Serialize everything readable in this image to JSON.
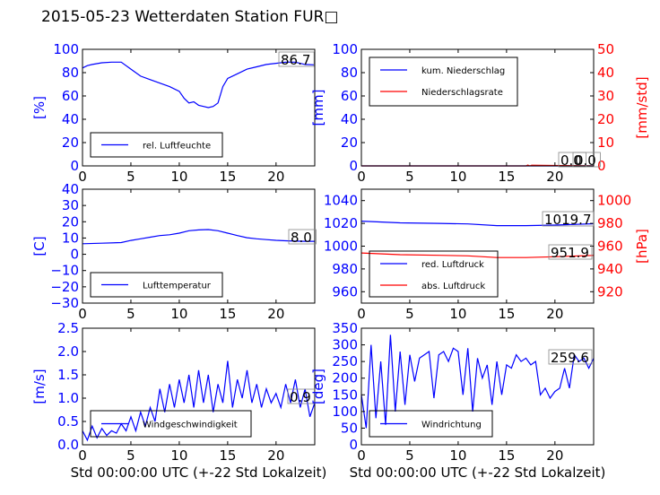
{
  "title": "2015-05-23 Wetterdaten Station FUR□",
  "chart_data": [
    {
      "type": "line",
      "ylabel": "[%]",
      "xlim": [
        0,
        24
      ],
      "ylim": [
        0,
        100
      ],
      "xticks": [
        0,
        5,
        10,
        15,
        20
      ],
      "yticks": [
        0,
        20,
        40,
        60,
        80,
        100
      ],
      "legend_placement": "lower-left",
      "series": [
        {
          "name": "rel. Luftfeuchte",
          "color": "#0000ff",
          "x": [
            0,
            0.5,
            1,
            2,
            3,
            4,
            5,
            6,
            7,
            8,
            9,
            10,
            10.5,
            11,
            11.5,
            12,
            12.5,
            13,
            13.5,
            14,
            14.5,
            15,
            16,
            17,
            18,
            19,
            20,
            21,
            22,
            23,
            24
          ],
          "values": [
            84,
            86,
            87,
            88.5,
            89,
            89,
            83,
            77,
            74,
            71,
            68,
            64,
            58,
            54,
            55,
            52,
            51,
            50,
            51,
            54,
            68,
            75,
            79,
            83,
            85,
            87,
            88,
            89,
            89,
            87,
            86.7
          ]
        }
      ],
      "annotations": [
        "86.7"
      ]
    },
    {
      "type": "line",
      "ylabel": "[mm]",
      "ylabel_right": "[mm/std]",
      "xlim": [
        0,
        24
      ],
      "ylim": [
        0,
        100
      ],
      "ylim_right": [
        0,
        50
      ],
      "xticks": [
        0,
        5,
        10,
        15,
        20
      ],
      "yticks": [
        0,
        20,
        40,
        60,
        80,
        100
      ],
      "yticks_right": [
        0,
        10,
        20,
        30,
        40,
        50
      ],
      "legend_placement": "upper-left",
      "series": [
        {
          "name": "kum. Niederschlag",
          "color": "#0000ff",
          "x": [
            0,
            24
          ],
          "values": [
            0,
            0
          ]
        },
        {
          "name": "Niederschlagsrate",
          "color": "#ff0000",
          "axis": "right",
          "x": [
            0,
            17,
            17.2,
            17.4,
            17.6,
            24
          ],
          "values": [
            0,
            0,
            0.4,
            0,
            0.3,
            0
          ]
        }
      ],
      "annotations": [
        "0.0",
        "0.0"
      ]
    },
    {
      "type": "line",
      "ylabel": "[C]",
      "xlim": [
        0,
        24
      ],
      "ylim": [
        -30,
        40
      ],
      "xticks": [
        0,
        5,
        10,
        15,
        20
      ],
      "yticks": [
        -30,
        -20,
        -10,
        0,
        10,
        20,
        30,
        40
      ],
      "legend_placement": "lower-left",
      "series": [
        {
          "name": "Lufttemperatur",
          "color": "#0000ff",
          "x": [
            0,
            2,
            4,
            5,
            6,
            7,
            8,
            9,
            10,
            11,
            12,
            13,
            14,
            15,
            16,
            17,
            18,
            19,
            20,
            21,
            22,
            23,
            24
          ],
          "values": [
            6.5,
            6.8,
            7.2,
            8.5,
            9.5,
            10.5,
            11.5,
            12,
            13,
            14.5,
            15,
            15.2,
            14.5,
            13,
            11.5,
            10.2,
            9.5,
            9,
            8.6,
            8.3,
            8.1,
            8.0,
            8.0
          ]
        }
      ],
      "annotations": [
        "8.0"
      ]
    },
    {
      "type": "line",
      "ylabel_right": "[hPa]",
      "xlim": [
        0,
        24
      ],
      "ylim": [
        950,
        1050
      ],
      "ylim_right": [
        910,
        1010
      ],
      "xticks": [
        0,
        5,
        10,
        15,
        20
      ],
      "yticks": [
        960,
        980,
        1000,
        1020,
        1040
      ],
      "yticks_right": [
        920,
        940,
        960,
        980,
        1000
      ],
      "legend_placement": "lower-left",
      "series": [
        {
          "name": "red. Luftdruck",
          "color": "#0000ff",
          "x": [
            0,
            4,
            8,
            11,
            14,
            17,
            20,
            24
          ],
          "values": [
            1022,
            1020.5,
            1020,
            1019.5,
            1018,
            1018,
            1018.5,
            1019.7
          ]
        },
        {
          "name": "abs. Luftdruck",
          "color": "#ff0000",
          "axis": "right",
          "x": [
            0,
            4,
            8,
            11,
            14,
            17,
            20,
            24
          ],
          "values": [
            954,
            952.5,
            952,
            951.5,
            950,
            950,
            950.7,
            951.9
          ]
        }
      ],
      "annotations": [
        "1019.7",
        "951.9"
      ]
    },
    {
      "type": "line",
      "ylabel": "[m/s]",
      "xlabel": "Std 00:00:00 UTC (+-22 Std Lokalzeit)",
      "xlim": [
        0,
        24
      ],
      "ylim": [
        0,
        2.5
      ],
      "xticks": [
        0,
        5,
        10,
        15,
        20
      ],
      "yticks": [
        0.0,
        0.5,
        1.0,
        1.5,
        2.0,
        2.5
      ],
      "legend_placement": "lower-left",
      "series": [
        {
          "name": "Windgeschwindigkeit",
          "color": "#0000ff",
          "x": [
            0,
            0.5,
            1,
            1.5,
            2,
            2.5,
            3,
            3.5,
            4,
            4.5,
            5,
            5.5,
            6,
            6.5,
            7,
            7.5,
            8,
            8.5,
            9,
            9.5,
            10,
            10.5,
            11,
            11.5,
            12,
            12.5,
            13,
            13.5,
            14,
            14.5,
            15,
            15.5,
            16,
            16.5,
            17,
            17.5,
            18,
            18.5,
            19,
            19.5,
            20,
            20.5,
            21,
            21.5,
            22,
            22.5,
            23,
            23.5,
            24
          ],
          "values": [
            0.3,
            0.1,
            0.4,
            0.15,
            0.35,
            0.2,
            0.3,
            0.25,
            0.45,
            0.3,
            0.6,
            0.3,
            0.7,
            0.4,
            0.8,
            0.5,
            1.2,
            0.7,
            1.3,
            0.8,
            1.4,
            0.9,
            1.5,
            0.8,
            1.6,
            0.9,
            1.5,
            0.7,
            1.3,
            0.9,
            1.8,
            0.8,
            1.4,
            1.0,
            1.6,
            0.9,
            1.3,
            0.8,
            1.2,
            0.9,
            1.1,
            0.8,
            1.3,
            0.9,
            1.4,
            0.8,
            1.2,
            0.6,
            0.9
          ]
        }
      ],
      "annotations": [
        "0.9"
      ]
    },
    {
      "type": "line",
      "ylabel": "[deg]",
      "xlabel": "Std 00:00:00 UTC (+-22 Std Lokalzeit)",
      "xlim": [
        0,
        24
      ],
      "ylim": [
        0,
        350
      ],
      "xticks": [
        0,
        5,
        10,
        15,
        20
      ],
      "yticks": [
        0,
        50,
        100,
        150,
        200,
        250,
        300,
        350
      ],
      "legend_placement": "lower-left",
      "series": [
        {
          "name": "Windrichtung",
          "color": "#0000ff",
          "x": [
            0,
            0.5,
            1,
            1.5,
            2,
            2.5,
            3,
            3.5,
            4,
            4.5,
            5,
            5.5,
            6,
            6.5,
            7,
            7.5,
            8,
            8.5,
            9,
            9.5,
            10,
            10.5,
            11,
            11.5,
            12,
            12.5,
            13,
            13.5,
            14,
            14.5,
            15,
            15.5,
            16,
            16.5,
            17,
            17.5,
            18,
            18.5,
            19,
            19.5,
            20,
            20.5,
            21,
            21.5,
            22,
            22.5,
            23,
            23.5,
            24
          ],
          "values": [
            150,
            50,
            300,
            80,
            250,
            60,
            330,
            100,
            280,
            120,
            270,
            190,
            260,
            270,
            280,
            140,
            270,
            280,
            250,
            290,
            280,
            150,
            290,
            100,
            260,
            200,
            240,
            120,
            250,
            150,
            240,
            230,
            270,
            250,
            260,
            240,
            250,
            150,
            170,
            140,
            160,
            170,
            230,
            170,
            270,
            250,
            260,
            230,
            259.6
          ]
        }
      ],
      "annotations": [
        "259.6"
      ]
    }
  ]
}
